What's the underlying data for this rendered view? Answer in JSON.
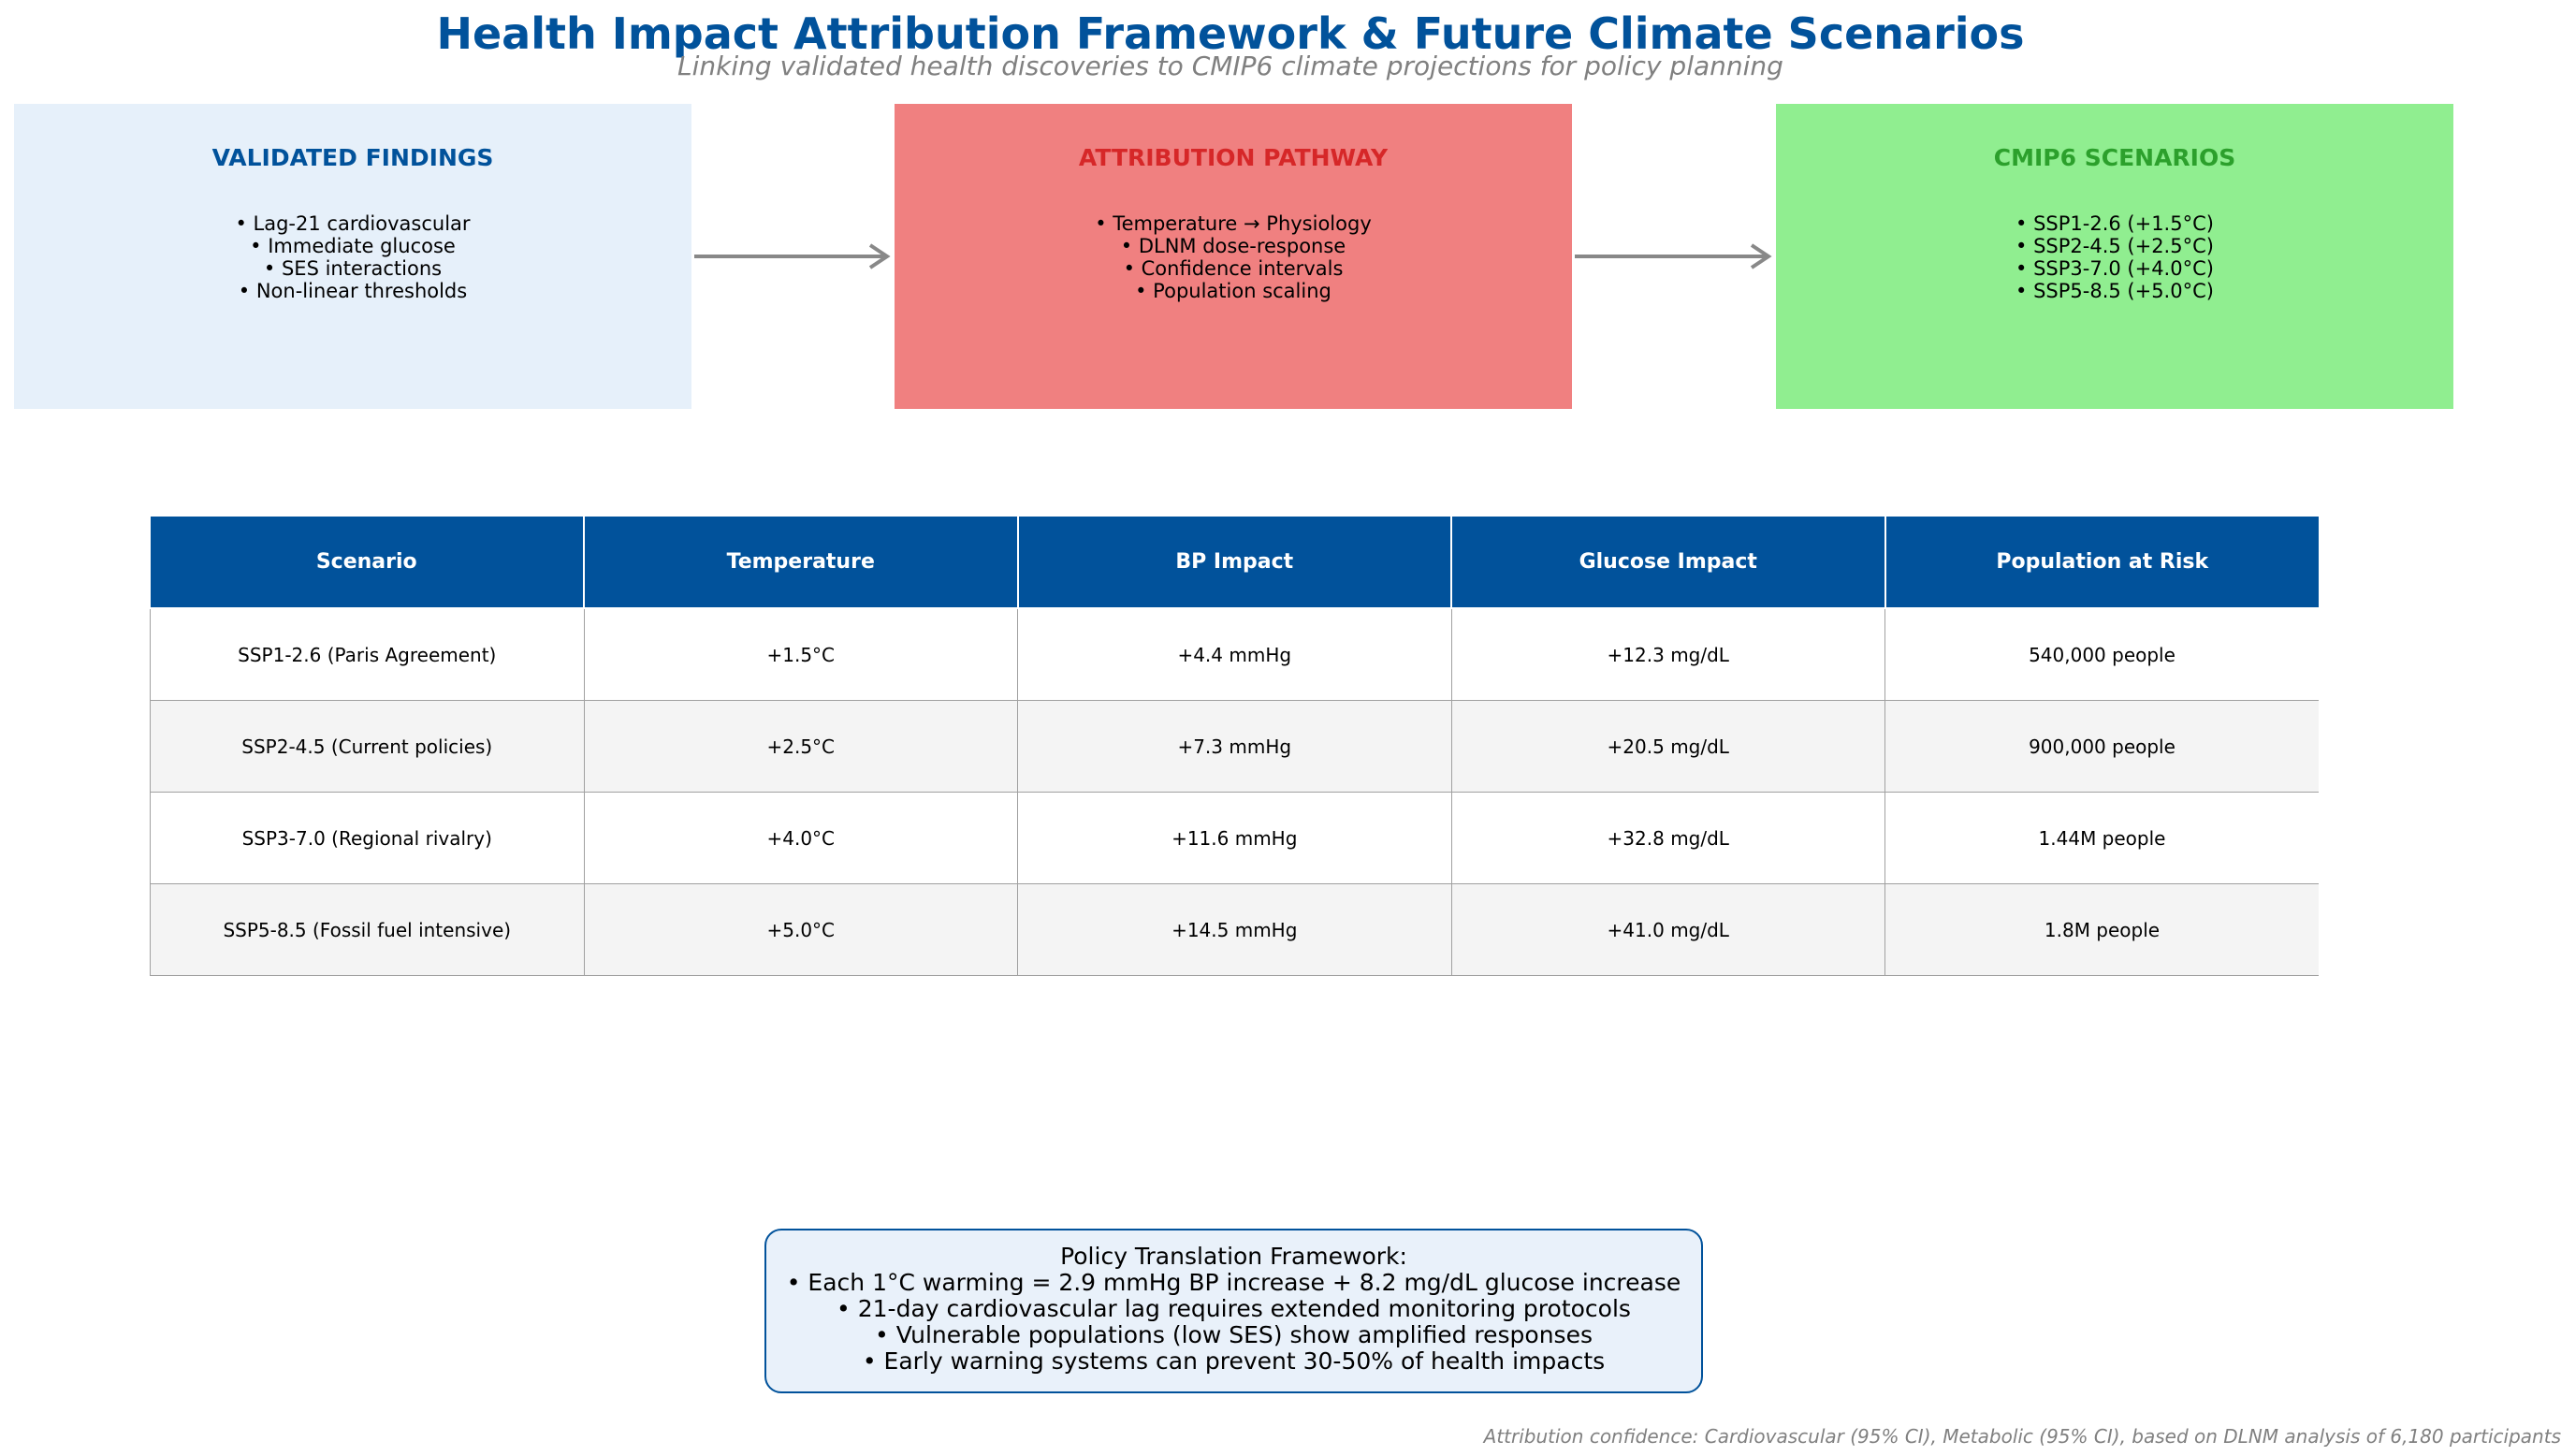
{
  "header": {
    "title": "Health Impact Attribution Framework & Future Climate Scenarios",
    "subtitle": "Linking validated health discoveries to CMIP6 climate projections for policy planning"
  },
  "flow": {
    "validated": {
      "title": "VALIDATED FINDINGS",
      "items": [
        "• Lag-21 cardiovascular",
        "• Immediate glucose",
        "• SES interactions",
        "• Non-linear thresholds"
      ],
      "color": "#e6f0fa"
    },
    "attribution": {
      "title": "ATTRIBUTION PATHWAY",
      "items": [
        "• Temperature → Physiology",
        "• DLNM dose-response",
        "• Confidence intervals",
        "• Population scaling"
      ],
      "color": "#f08080"
    },
    "cmip6": {
      "title": "CMIP6 SCENARIOS",
      "items": [
        "• SSP1-2.6 (+1.5°C)",
        "• SSP2-4.5 (+2.5°C)",
        "• SSP3-7.0 (+4.0°C)",
        "• SSP5-8.5 (+5.0°C)"
      ],
      "color": "#90ee90"
    },
    "arrow_color": "#888888"
  },
  "table": {
    "headers": [
      "Scenario",
      "Temperature",
      "BP Impact",
      "Glucose Impact",
      "Population at Risk"
    ],
    "rows": [
      [
        "SSP1-2.6 (Paris Agreement)",
        "+1.5°C",
        "+4.4 mmHg",
        "+12.3 mg/dL",
        "540,000 people"
      ],
      [
        "SSP2-4.5 (Current policies)",
        "+2.5°C",
        "+7.3 mmHg",
        "+20.5 mg/dL",
        "900,000 people"
      ],
      [
        "SSP3-7.0 (Regional rivalry)",
        "+4.0°C",
        "+11.6 mmHg",
        "+32.8 mg/dL",
        "1.44M people"
      ],
      [
        "SSP5-8.5 (Fossil fuel intensive)",
        "+5.0°C",
        "+14.5 mmHg",
        "+41.0 mg/dL",
        "1.8M people"
      ]
    ],
    "header_color": "#01529b"
  },
  "policy": {
    "heading": "Policy Translation Framework:",
    "items": [
      "• Each 1°C warming = 2.9 mmHg BP increase + 8.2 mg/dL glucose increase",
      "• 21-day cardiovascular lag requires extended monitoring protocols",
      "• Vulnerable populations (low SES) show amplified responses",
      "• Early warning systems can prevent 30-50% of health impacts"
    ]
  },
  "footer": {
    "note": "Attribution confidence: Cardiovascular (95% CI), Metabolic (95% CI), based on DLNM analysis of 6,180 participants"
  }
}
